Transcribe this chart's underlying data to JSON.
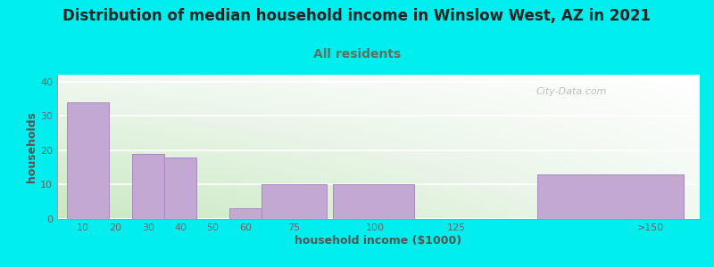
{
  "title": "Distribution of median household income in Winslow West, AZ in 2021",
  "subtitle": "All residents",
  "xlabel": "household income ($1000)",
  "ylabel": "households",
  "background_color": "#00EEEE",
  "bar_color": "#C4A8D4",
  "bar_edge_color": "#A888BC",
  "bar_lefts": [
    5,
    25,
    35,
    55,
    65,
    87,
    150
  ],
  "bar_rights": [
    18,
    35,
    45,
    65,
    85,
    112,
    195
  ],
  "bar_heights": [
    34,
    19,
    18,
    3,
    10,
    10,
    13
  ],
  "xtick_positions": [
    10,
    20,
    30,
    40,
    50,
    60,
    75,
    100,
    125,
    185
  ],
  "xtick_labels": [
    "10",
    "20",
    "30",
    "40",
    "50",
    "60",
    "75",
    "100",
    "125",
    ">150"
  ],
  "ytick_positions": [
    0,
    10,
    20,
    30,
    40
  ],
  "ylim": [
    0,
    42
  ],
  "xlim": [
    2,
    200
  ],
  "title_fontsize": 12,
  "subtitle_fontsize": 10,
  "axis_label_fontsize": 9,
  "tick_fontsize": 8,
  "watermark_text": "City-Data.com",
  "chart_bg_color_topleft": "#E8F4E8",
  "chart_bg_color_topright": "#F8FEF8",
  "chart_bg_color_bottomleft": "#D0ECC8",
  "chart_bg_color_bottomright": "#F0F8F0",
  "subtitle_color": "#607060",
  "title_color": "#222222",
  "label_color": "#555555",
  "tick_color": "#666666"
}
